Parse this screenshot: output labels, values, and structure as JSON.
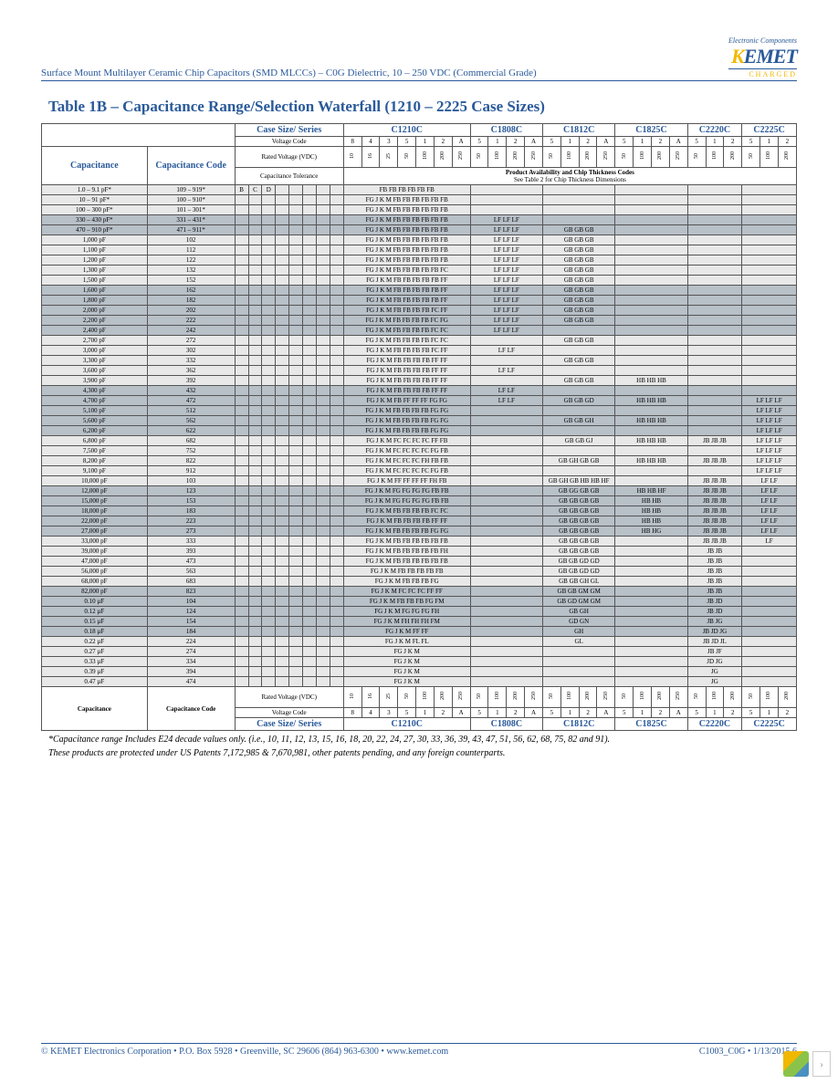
{
  "header": {
    "docTitle": "Surface Mount Multilayer Ceramic Chip Capacitors (SMD MLCCs) – C0G Dielectric, 10 – 250 VDC (Commercial Grade)",
    "logoTag": "Electronic Components",
    "logoText": "KEMET",
    "logoCharged": "CHARGED"
  },
  "tableTitle": "Table 1B – Capacitance Range/Selection Waterfall (1210 – 2225 Case Sizes)",
  "hdr": {
    "caseSeries": "Case Size/ Series",
    "capacitance": "Capacitance",
    "capCode": "Capacitance Code",
    "voltCode": "Voltage Code",
    "ratedV": "Rated Voltage (VDC)",
    "capTol": "Capacitance Tolerance",
    "prodAvail": "Product Availability and Chip Thickness Codes",
    "seeTable": "See Table 2 for Chip Thickness Dimensions"
  },
  "series": [
    "C1210C",
    "C1808C",
    "C1812C",
    "C1825C",
    "C2220C",
    "C2225C"
  ],
  "vCodes1210": [
    "8",
    "4",
    "3",
    "5",
    "1",
    "2",
    "A"
  ],
  "vVolts1210": [
    "10",
    "16",
    "25",
    "50",
    "100",
    "200",
    "250"
  ],
  "vCodes4": [
    "5",
    "1",
    "2",
    "A"
  ],
  "vVolts4": [
    "50",
    "100",
    "200",
    "250"
  ],
  "vCodes3": [
    "5",
    "1",
    "2"
  ],
  "vVolts3": [
    "50",
    "100",
    "200"
  ],
  "tolCodes": [
    "B",
    "C",
    "D",
    "F",
    "G",
    "J",
    "K",
    "M"
  ],
  "rows": [
    {
      "cap": "1.0 – 9.1 pF*",
      "code": "109 – 919*",
      "band": 0,
      "tol": "BCD",
      "c": {
        "0": "FB FB FB FB FB FB"
      }
    },
    {
      "cap": "10 – 91 pF*",
      "code": "100 – 910*",
      "band": 0,
      "tol": "",
      "c": {
        "0": "FG J K M FB FB FB FB FB FB"
      }
    },
    {
      "cap": "100 – 300 pF*",
      "code": "101 – 301*",
      "band": 0,
      "tol": "",
      "c": {
        "0": "FG J K M FB FB FB FB FB FB"
      }
    },
    {
      "cap": "330 – 430 pF*",
      "code": "331 – 431*",
      "band": 1,
      "tol": "",
      "c": {
        "0": "FG J K M FB FB FB FB FB FB",
        "1": "LF LF LF"
      }
    },
    {
      "cap": "470 – 910 pF*",
      "code": "471 – 911*",
      "band": 1,
      "tol": "",
      "c": {
        "0": "FG J K M FB FB FB FB FB FB",
        "1": "LF LF LF",
        "2": "GB GB GB"
      }
    },
    {
      "cap": "1,000 pF",
      "code": "102",
      "band": 0,
      "tol": "",
      "c": {
        "0": "FG J K M FB FB FB FB FB FB",
        "1": "LF LF LF",
        "2": "GB GB GB"
      }
    },
    {
      "cap": "1,100 pF",
      "code": "112",
      "band": 0,
      "tol": "",
      "c": {
        "0": "FG J K M FB FB FB FB FB FB",
        "1": "LF LF LF",
        "2": "GB GB GB"
      }
    },
    {
      "cap": "1,200 pF",
      "code": "122",
      "band": 0,
      "tol": "",
      "c": {
        "0": "FG J K M FB FB FB FB FB FB",
        "1": "LF LF LF",
        "2": "GB GB GB"
      }
    },
    {
      "cap": "1,300 pF",
      "code": "132",
      "band": 0,
      "tol": "",
      "c": {
        "0": "FG J K M FB FB FB FB FB FC",
        "1": "LF LF LF",
        "2": "GB GB GB"
      }
    },
    {
      "cap": "1,500 pF",
      "code": "152",
      "band": 0,
      "tol": "",
      "c": {
        "0": "FG J K M FB FB FB FB FB FF",
        "1": "LF LF LF",
        "2": "GB GB GB"
      }
    },
    {
      "cap": "1,600 pF",
      "code": "162",
      "band": 1,
      "tol": "",
      "c": {
        "0": "FG J K M FB FB FB FB FB FF",
        "1": "LF LF LF",
        "2": "GB GB GB"
      }
    },
    {
      "cap": "1,800 pF",
      "code": "182",
      "band": 1,
      "tol": "",
      "c": {
        "0": "FG J K M FB FB FB FB FB FF",
        "1": "LF LF LF",
        "2": "GB GB GB"
      }
    },
    {
      "cap": "2,000 pF",
      "code": "202",
      "band": 1,
      "tol": "",
      "c": {
        "0": "FG J K M FB FB FB FB FC FF",
        "1": "LF LF LF",
        "2": "GB GB GB"
      }
    },
    {
      "cap": "2,200 pF",
      "code": "222",
      "band": 1,
      "tol": "",
      "c": {
        "0": "FG J K M FB FB FB FB FC FG",
        "1": "LF LF LF",
        "2": "GB GB GB"
      }
    },
    {
      "cap": "2,400 pF",
      "code": "242",
      "band": 1,
      "tol": "",
      "c": {
        "0": "FG J K M FB FB FB FB FC FC",
        "1": "LF LF LF"
      }
    },
    {
      "cap": "2,700 pF",
      "code": "272",
      "band": 0,
      "tol": "",
      "c": {
        "0": "FG J K M FB FB FB FB FC FC",
        "2": "GB GB GB"
      }
    },
    {
      "cap": "3,000 pF",
      "code": "302",
      "band": 0,
      "tol": "",
      "c": {
        "0": "FG J K M FB FB FB FB FC FF",
        "1": "LF LF"
      }
    },
    {
      "cap": "3,300 pF",
      "code": "332",
      "band": 0,
      "tol": "",
      "c": {
        "0": "FG J K M FB FB FB FB FF FF",
        "2": "GB GB GB"
      }
    },
    {
      "cap": "3,600 pF",
      "code": "362",
      "band": 0,
      "tol": "",
      "c": {
        "0": "FG J K M FB FB FB FB FF FF",
        "1": "LF LF"
      }
    },
    {
      "cap": "3,900 pF",
      "code": "392",
      "band": 0,
      "tol": "",
      "c": {
        "0": "FG J K M FB FB FB FB FF FF",
        "2": "GB GB GB",
        "3": "HB HB HB"
      }
    },
    {
      "cap": "4,300 pF",
      "code": "432",
      "band": 1,
      "tol": "",
      "c": {
        "0": "FG J K M FB FB FB FB FF FF",
        "1": "LF LF"
      }
    },
    {
      "cap": "4,700 pF",
      "code": "472",
      "band": 1,
      "tol": "",
      "c": {
        "0": "FG J K M FB FF FF FF FG FG",
        "1": "LF LF",
        "2": "GB GB GD",
        "3": "HB HB HB",
        "5": "LF LF LF"
      }
    },
    {
      "cap": "5,100 pF",
      "code": "512",
      "band": 1,
      "tol": "",
      "c": {
        "0": "FG J K M FB FB FB FB FG FG",
        "5": "LF LF LF"
      }
    },
    {
      "cap": "5,600 pF",
      "code": "562",
      "band": 1,
      "tol": "",
      "c": {
        "0": "FG J K M FB FB FB FB FG FG",
        "2": "GB GB GH",
        "3": "HB HB HB",
        "5": "LF LF LF"
      }
    },
    {
      "cap": "6,200 pF",
      "code": "622",
      "band": 1,
      "tol": "",
      "c": {
        "0": "FG J K M FB FB FB FB FG FG",
        "5": "LF LF LF"
      }
    },
    {
      "cap": "6,800 pF",
      "code": "682",
      "band": 0,
      "tol": "",
      "c": {
        "0": "FG J K M FC FC FC FC FF FB",
        "2": "GB GB GJ",
        "3": "HB HB HB",
        "4": "JB JB JB",
        "5": "LF LF LF"
      }
    },
    {
      "cap": "7,500 pF",
      "code": "752",
      "band": 0,
      "tol": "",
      "c": {
        "0": "FG J K M FC FC FC FC FG FB",
        "5": "LF LF LF"
      }
    },
    {
      "cap": "8,200 pF",
      "code": "822",
      "band": 0,
      "tol": "",
      "c": {
        "0": "FG J K M FC FC FC FH FB FB",
        "2": "GB GH GB GB",
        "3": "HB HB HB",
        "4": "JB JB JB",
        "5": "LF LF LF"
      }
    },
    {
      "cap": "9,100 pF",
      "code": "912",
      "band": 0,
      "tol": "",
      "c": {
        "0": "FG J K M FC FC FC FC FG FB",
        "5": "LF LF LF"
      }
    },
    {
      "cap": "10,000 pF",
      "code": "103",
      "band": 0,
      "tol": "",
      "c": {
        "0": "FG J K M FF FF FF FF FH FB",
        "2": "GB GH GB HB HB HF",
        "4": "JB JB JB",
        "5": "LF LF"
      }
    },
    {
      "cap": "12,000 pF",
      "code": "123",
      "band": 1,
      "tol": "",
      "c": {
        "0": "FG J K M FG FG FG FG FB FB",
        "2": "GB GG GB GB",
        "3": "HB HB HF",
        "4": "JB JB JB",
        "5": "LF LF"
      }
    },
    {
      "cap": "15,000 pF",
      "code": "153",
      "band": 1,
      "tol": "",
      "c": {
        "0": "FG J K M FG FG FG FG FB FB",
        "2": "GB GB GB GB",
        "3": "HB HB",
        "4": "JB JB JB",
        "5": "LF LF"
      }
    },
    {
      "cap": "18,000 pF",
      "code": "183",
      "band": 1,
      "tol": "",
      "c": {
        "0": "FG J K M FB FB FB FB FC FC",
        "2": "GB GB GB GB",
        "3": "HB HB",
        "4": "JB JB JB",
        "5": "LF LF"
      }
    },
    {
      "cap": "22,000 pF",
      "code": "223",
      "band": 1,
      "tol": "",
      "c": {
        "0": "FG J K M FB FB FB FB FF FF",
        "2": "GB GB GB GB",
        "3": "HB HB",
        "4": "JB JB JB",
        "5": "LF LF"
      }
    },
    {
      "cap": "27,000 pF",
      "code": "273",
      "band": 1,
      "tol": "",
      "c": {
        "0": "FG J K M FB FB FB FB FG FG",
        "2": "GB GB GB GB",
        "3": "HB HG",
        "4": "JB JB JB",
        "5": "LF LF"
      }
    },
    {
      "cap": "33,000 pF",
      "code": "333",
      "band": 0,
      "tol": "",
      "c": {
        "0": "FG J K M FB FB FB FB FB FB",
        "2": "GB GB GB GB",
        "4": "JB JB JB",
        "5": "LF"
      }
    },
    {
      "cap": "39,000 pF",
      "code": "393",
      "band": 0,
      "tol": "",
      "c": {
        "0": "FG J K M FB FB FB FB FB FH",
        "2": "GB GB GB GB",
        "4": "JB JB"
      }
    },
    {
      "cap": "47,000 pF",
      "code": "473",
      "band": 0,
      "tol": "",
      "c": {
        "0": "FG J K M FB FB FB FB FB FB",
        "2": "GB GB GD GD",
        "4": "JB JB"
      }
    },
    {
      "cap": "56,000 pF",
      "code": "563",
      "band": 0,
      "tol": "",
      "c": {
        "0": "FG J K M FB FB FB FB FB",
        "2": "GB GB GD GD",
        "4": "JB JB"
      }
    },
    {
      "cap": "68,000 pF",
      "code": "683",
      "band": 0,
      "tol": "",
      "c": {
        "0": "FG J K M FB FB FB FG",
        "2": "GB GB GH GL",
        "4": "JB JB"
      }
    },
    {
      "cap": "82,000 pF",
      "code": "823",
      "band": 1,
      "tol": "",
      "c": {
        "0": "FG J K M FC FC FC FF FF",
        "2": "GB GB GM GM",
        "4": "JB JB"
      }
    },
    {
      "cap": "0.10 µF",
      "code": "104",
      "band": 1,
      "tol": "",
      "c": {
        "0": "FG J K M FB FB FB FG FM",
        "2": "GB GD GM GM",
        "4": "JB JD"
      }
    },
    {
      "cap": "0.12 µF",
      "code": "124",
      "band": 1,
      "tol": "",
      "c": {
        "0": "FG J K M FG FG FG FH",
        "2": "GB GH",
        "4": "JB JD"
      }
    },
    {
      "cap": "0.15 µF",
      "code": "154",
      "band": 1,
      "tol": "",
      "c": {
        "0": "FG J K M FH FH FH FM",
        "2": "GD GN",
        "4": "JB JG"
      }
    },
    {
      "cap": "0.18 µF",
      "code": "184",
      "band": 1,
      "tol": "",
      "c": {
        "0": "FG J K M FF FF",
        "2": "GH",
        "4": "JB JD JG"
      }
    },
    {
      "cap": "0.22 µF",
      "code": "224",
      "band": 0,
      "tol": "",
      "c": {
        "0": "FG J K M FL FL",
        "2": "GL",
        "4": "JB JD JL"
      }
    },
    {
      "cap": "0.27 µF",
      "code": "274",
      "band": 0,
      "tol": "",
      "c": {
        "0": "FG J K M",
        "4": "JB JF"
      }
    },
    {
      "cap": "0.33 µF",
      "code": "334",
      "band": 0,
      "tol": "",
      "c": {
        "0": "FG J K M",
        "4": "JD JG"
      }
    },
    {
      "cap": "0.39 µF",
      "code": "394",
      "band": 0,
      "tol": "",
      "c": {
        "0": "FG J K M",
        "4": "JG"
      }
    },
    {
      "cap": "0.47 µF",
      "code": "474",
      "band": 0,
      "tol": "",
      "c": {
        "0": "FG J K M",
        "4": "JG"
      }
    }
  ],
  "footnotes": [
    "*Capacitance range Includes E24 decade values only. (i.e., 10, 11, 12, 13, 15, 16, 18, 20, 22, 24, 27, 30, 33, 36, 39, 43, 47, 51, 56, 62, 68, 75, 82 and 91).",
    "These products are protected under US Patents 7,172,985 & 7,670,981, other patents pending, and any foreign counterparts."
  ],
  "footer": {
    "left": "© KEMET Electronics Corporation • P.O. Box 5928 • Greenville, SC 29606 (864) 963-6300 • www.kemet.com",
    "right": "C1003_C0G • 1/13/2015     6"
  }
}
